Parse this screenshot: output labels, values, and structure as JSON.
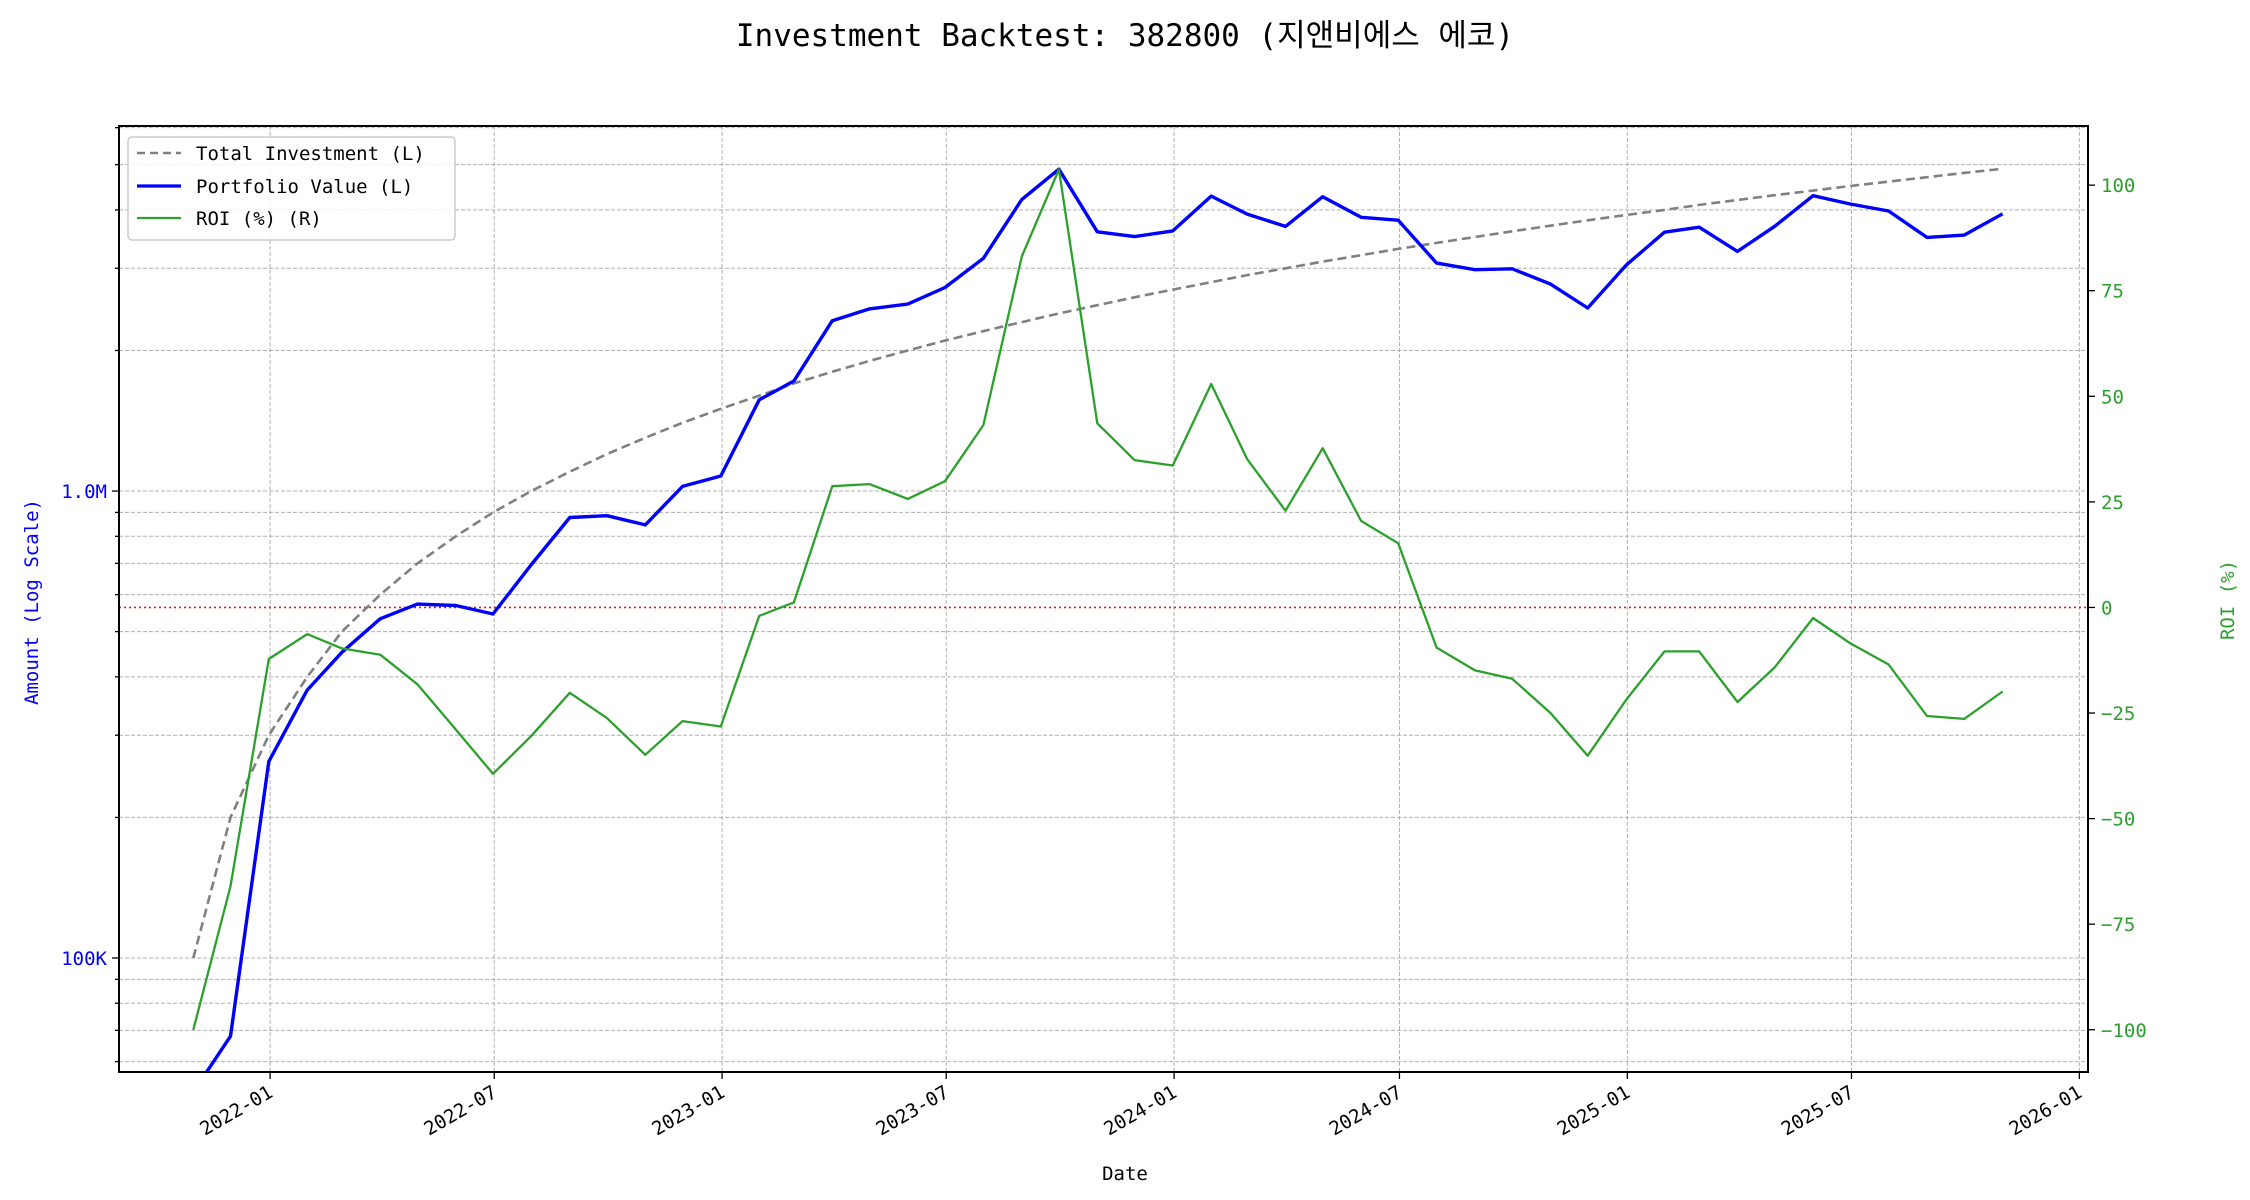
{
  "chart_data": {
    "type": "line",
    "title": "Investment Backtest: 382800 (지앤비에스 에코)",
    "xlabel": "Date",
    "ylabel_left": "Amount (Log Scale)",
    "ylabel_right": "ROI (%)",
    "left_scale": "log",
    "left_ylim": [
      57000,
      6050000
    ],
    "right_ylim": [
      -110,
      114
    ],
    "xlim": [
      "2021-09-01",
      "2026-01-08"
    ],
    "grid": true,
    "legend_position": "top-left",
    "x_ticks": [
      "2022-01",
      "2022-07",
      "2023-01",
      "2023-07",
      "2024-01",
      "2024-07",
      "2025-01",
      "2025-07",
      "2026-01"
    ],
    "left_ticks": [
      {
        "value": 100000,
        "label": "100K"
      },
      {
        "value": 1000000,
        "label": "1.0M"
      }
    ],
    "right_ticks": [
      {
        "value": 100,
        "label": "100"
      },
      {
        "value": 75,
        "label": "75"
      },
      {
        "value": 50,
        "label": "50"
      },
      {
        "value": 25,
        "label": "25"
      },
      {
        "value": 0,
        "label": "0"
      },
      {
        "value": -25,
        "label": "−25"
      },
      {
        "value": -50,
        "label": "−50"
      },
      {
        "value": -75,
        "label": "−75"
      },
      {
        "value": -100,
        "label": "−100"
      }
    ],
    "reference_line": {
      "axis": "right",
      "value": 0,
      "color": "#e41a1c",
      "style": "dotted"
    },
    "x": [
      "2021-10-31",
      "2021-11-30",
      "2021-12-31",
      "2022-01-31",
      "2022-02-28",
      "2022-03-31",
      "2022-04-30",
      "2022-05-31",
      "2022-06-30",
      "2022-07-31",
      "2022-08-31",
      "2022-09-30",
      "2022-10-31",
      "2022-11-30",
      "2022-12-31",
      "2023-01-31",
      "2023-02-28",
      "2023-03-31",
      "2023-04-30",
      "2023-05-31",
      "2023-06-30",
      "2023-07-31",
      "2023-08-31",
      "2023-09-30",
      "2023-10-31",
      "2023-11-30",
      "2023-12-31",
      "2024-01-31",
      "2024-02-29",
      "2024-03-31",
      "2024-04-30",
      "2024-05-31",
      "2024-06-30",
      "2024-07-31",
      "2024-08-31",
      "2024-09-30",
      "2024-10-31",
      "2024-11-30",
      "2024-12-31",
      "2025-01-31",
      "2025-02-28",
      "2025-03-31",
      "2025-04-30",
      "2025-05-31",
      "2025-06-30",
      "2025-07-31",
      "2025-08-31",
      "2025-09-30",
      "2025-10-31"
    ],
    "series": [
      {
        "name": "Total Investment (L)",
        "axis": "left",
        "color": "#808080",
        "style": "dashed",
        "values": [
          100000,
          200000,
          300000,
          400000,
          500000,
          600000,
          700000,
          800000,
          900000,
          1000000,
          1100000,
          1200000,
          1300000,
          1400000,
          1500000,
          1600000,
          1700000,
          1800000,
          1900000,
          2000000,
          2100000,
          2200000,
          2300000,
          2400000,
          2500000,
          2600000,
          2700000,
          2800000,
          2900000,
          3000000,
          3100000,
          3200000,
          3300000,
          3400000,
          3500000,
          3600000,
          3700000,
          3800000,
          3900000,
          4000000,
          4100000,
          4200000,
          4300000,
          4400000,
          4500000,
          4600000,
          4700000,
          4800000,
          4900000
        ]
      },
      {
        "name": "Portfolio Value (L)",
        "axis": "left",
        "color": "#0000ff",
        "style": "solid",
        "values": [
          0,
          68000,
          263400,
          374800,
          451500,
          532800,
          572600,
          568800,
          545400,
          696000,
          877800,
          885600,
          846300,
          1023400,
          1077000,
          1568000,
          1720400,
          2316600,
          2454800,
          2514000,
          2727900,
          3150400,
          4211300,
          4888800,
          3590000,
          3507400,
          3607200,
          4281200,
          3917900,
          3687000,
          4268700,
          3856000,
          3801600,
          3077000,
          2978500,
          2991600,
          2775000,
          2466200,
          3045900,
          3584000,
          3673600,
          3259200,
          3689400,
          4290000,
          4117500,
          3979000,
          3492100,
          3532800,
          3924900
        ]
      },
      {
        "name": "ROI (%) (R)",
        "axis": "right",
        "color": "#2ca02c",
        "style": "solid",
        "values": [
          -100,
          -66,
          -12.2,
          -6.3,
          -9.7,
          -11.2,
          -18.2,
          -28.9,
          -39.4,
          -30.4,
          -20.2,
          -26.2,
          -34.9,
          -26.9,
          -28.2,
          -2.0,
          1.2,
          28.7,
          29.2,
          25.7,
          29.9,
          43.2,
          83.1,
          103.7,
          43.6,
          34.9,
          33.6,
          52.9,
          35.1,
          22.9,
          37.7,
          20.5,
          15.2,
          -9.5,
          -14.9,
          -16.9,
          -25.0,
          -35.1,
          -21.9,
          -10.4,
          -10.4,
          -22.4,
          -14.2,
          -2.5,
          -8.5,
          -13.5,
          -25.7,
          -26.4,
          -19.9
        ]
      }
    ]
  }
}
